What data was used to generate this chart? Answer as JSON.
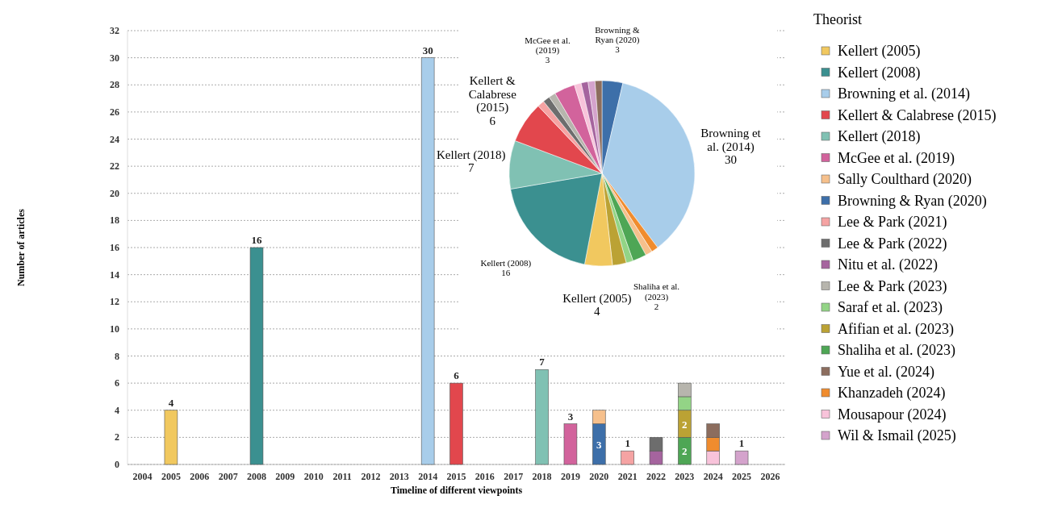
{
  "chart_data": [
    {
      "type": "bar",
      "stacked": true,
      "xlabel": "Timeline of different viewpoints",
      "ylabel": "Number of articles",
      "legend_title": "Theorist",
      "legend": "right",
      "grid": "y",
      "ylim": [
        0,
        32
      ],
      "yticks": [
        0,
        2,
        4,
        6,
        8,
        10,
        12,
        14,
        16,
        18,
        20,
        22,
        24,
        26,
        28,
        30,
        32
      ],
      "categories": [
        "2004",
        "2005",
        "2006",
        "2007",
        "2008",
        "2009",
        "2010",
        "2011",
        "2012",
        "2013",
        "2014",
        "2015",
        "2016",
        "2017",
        "2018",
        "2019",
        "2020",
        "2021",
        "2022",
        "2023",
        "2024",
        "2025",
        "2026"
      ],
      "series": [
        {
          "name": "Wil & Ismail (2025)",
          "color": "#d4a3cc",
          "values": [
            null,
            null,
            null,
            null,
            null,
            null,
            null,
            null,
            null,
            null,
            null,
            null,
            null,
            null,
            null,
            null,
            null,
            null,
            null,
            null,
            null,
            1,
            null
          ],
          "value_labels": [
            null,
            null,
            null,
            null,
            null,
            null,
            null,
            null,
            null,
            null,
            null,
            null,
            null,
            null,
            null,
            null,
            null,
            null,
            null,
            null,
            null,
            "1",
            null
          ]
        },
        {
          "name": "Mousapour (2024)",
          "color": "#f8c3da",
          "values": [
            null,
            null,
            null,
            null,
            null,
            null,
            null,
            null,
            null,
            null,
            null,
            null,
            null,
            null,
            null,
            null,
            null,
            null,
            null,
            null,
            1,
            null,
            null
          ]
        },
        {
          "name": "Khanzadeh (2024)",
          "color": "#f08c2e",
          "values": [
            null,
            null,
            null,
            null,
            null,
            null,
            null,
            null,
            null,
            null,
            null,
            null,
            null,
            null,
            null,
            null,
            null,
            null,
            null,
            null,
            1,
            null,
            null
          ]
        },
        {
          "name": "Yue et al. (2024)",
          "color": "#8c6d5e",
          "values": [
            null,
            null,
            null,
            null,
            null,
            null,
            null,
            null,
            null,
            null,
            null,
            null,
            null,
            null,
            null,
            null,
            null,
            null,
            null,
            null,
            1,
            null,
            null
          ]
        },
        {
          "name": "Shaliha et al. (2023)",
          "color": "#4ea655",
          "values": [
            null,
            null,
            null,
            null,
            null,
            null,
            null,
            null,
            null,
            null,
            null,
            null,
            null,
            null,
            null,
            null,
            null,
            null,
            null,
            2,
            null,
            null,
            null
          ],
          "value_labels": [
            null,
            null,
            null,
            null,
            null,
            null,
            null,
            null,
            null,
            null,
            null,
            null,
            null,
            null,
            null,
            null,
            null,
            null,
            null,
            "2",
            null,
            null,
            null
          ]
        },
        {
          "name": "Afifian et al. (2023)",
          "color": "#bba234",
          "values": [
            null,
            null,
            null,
            null,
            null,
            null,
            null,
            null,
            null,
            null,
            null,
            null,
            null,
            null,
            null,
            null,
            null,
            null,
            null,
            2,
            null,
            null,
            null
          ],
          "value_labels": [
            null,
            null,
            null,
            null,
            null,
            null,
            null,
            null,
            null,
            null,
            null,
            null,
            null,
            null,
            null,
            null,
            null,
            null,
            null,
            "2",
            null,
            null,
            null
          ]
        },
        {
          "name": "Saraf et al. (2023)",
          "color": "#93d486",
          "values": [
            null,
            null,
            null,
            null,
            null,
            null,
            null,
            null,
            null,
            null,
            null,
            null,
            null,
            null,
            null,
            null,
            null,
            null,
            null,
            1,
            null,
            null,
            null
          ]
        },
        {
          "name": "Lee & Park (2023)",
          "color": "#b7b5ad",
          "values": [
            null,
            null,
            null,
            null,
            null,
            null,
            null,
            null,
            null,
            null,
            null,
            null,
            null,
            null,
            null,
            null,
            null,
            null,
            null,
            1,
            null,
            null,
            null
          ]
        },
        {
          "name": "Nitu et al. (2022)",
          "color": "#a5649e",
          "values": [
            null,
            null,
            null,
            null,
            null,
            null,
            null,
            null,
            null,
            null,
            null,
            null,
            null,
            null,
            null,
            null,
            null,
            null,
            1,
            null,
            null,
            null,
            null
          ]
        },
        {
          "name": "Lee & Park (2022)",
          "color": "#6d6d6d",
          "values": [
            null,
            null,
            null,
            null,
            null,
            null,
            null,
            null,
            null,
            null,
            null,
            null,
            null,
            null,
            null,
            null,
            null,
            null,
            1,
            null,
            null,
            null,
            null
          ]
        },
        {
          "name": "Lee & Park (2021)",
          "color": "#f5a3a3",
          "values": [
            null,
            null,
            null,
            null,
            null,
            null,
            null,
            null,
            null,
            null,
            null,
            null,
            null,
            null,
            null,
            null,
            null,
            1,
            null,
            null,
            null,
            null,
            null
          ],
          "value_labels": [
            null,
            null,
            null,
            null,
            null,
            null,
            null,
            null,
            null,
            null,
            null,
            null,
            null,
            null,
            null,
            null,
            null,
            "1",
            null,
            null,
            null,
            null,
            null
          ]
        },
        {
          "name": "Browning & Ryan (2020)",
          "color": "#3d6fa9",
          "values": [
            null,
            null,
            null,
            null,
            null,
            null,
            null,
            null,
            null,
            null,
            null,
            null,
            null,
            null,
            null,
            null,
            3,
            null,
            null,
            null,
            null,
            null,
            null
          ],
          "value_labels": [
            null,
            null,
            null,
            null,
            null,
            null,
            null,
            null,
            null,
            null,
            null,
            null,
            null,
            null,
            null,
            null,
            "3",
            null,
            null,
            null,
            null,
            null,
            null
          ]
        },
        {
          "name": "Sally Coulthard (2020)",
          "color": "#f6c08c",
          "values": [
            null,
            null,
            null,
            null,
            null,
            null,
            null,
            null,
            null,
            null,
            null,
            null,
            null,
            null,
            null,
            null,
            1,
            null,
            null,
            null,
            null,
            null,
            null
          ]
        },
        {
          "name": "McGee et al. (2019)",
          "color": "#d2639c",
          "values": [
            null,
            null,
            null,
            null,
            null,
            null,
            null,
            null,
            null,
            null,
            null,
            null,
            null,
            null,
            null,
            3,
            null,
            null,
            null,
            null,
            null,
            null,
            null
          ],
          "value_labels": [
            null,
            null,
            null,
            null,
            null,
            null,
            null,
            null,
            null,
            null,
            null,
            null,
            null,
            null,
            null,
            "3",
            null,
            null,
            null,
            null,
            null,
            null,
            null
          ]
        },
        {
          "name": "Kellert (2018)",
          "color": "#80c1b3",
          "values": [
            null,
            null,
            null,
            null,
            null,
            null,
            null,
            null,
            null,
            null,
            null,
            null,
            null,
            null,
            7,
            null,
            null,
            null,
            null,
            null,
            null,
            null,
            null
          ],
          "value_labels": [
            null,
            null,
            null,
            null,
            null,
            null,
            null,
            null,
            null,
            null,
            null,
            null,
            null,
            null,
            "7",
            null,
            null,
            null,
            null,
            null,
            null,
            null,
            null
          ]
        },
        {
          "name": "Kellert & Calabrese (2015)",
          "color": "#e2474d",
          "values": [
            null,
            null,
            null,
            null,
            null,
            null,
            null,
            null,
            null,
            null,
            null,
            6,
            null,
            null,
            null,
            null,
            null,
            null,
            null,
            null,
            null,
            null,
            null
          ],
          "value_labels": [
            null,
            null,
            null,
            null,
            null,
            null,
            null,
            null,
            null,
            null,
            null,
            "6",
            null,
            null,
            null,
            null,
            null,
            null,
            null,
            null,
            null,
            null,
            null
          ]
        },
        {
          "name": "Browning et al. (2014)",
          "color": "#a8cdea",
          "values": [
            null,
            null,
            null,
            null,
            null,
            null,
            null,
            null,
            null,
            null,
            30,
            null,
            null,
            null,
            null,
            null,
            null,
            null,
            null,
            null,
            null,
            null,
            null
          ],
          "value_labels": [
            null,
            null,
            null,
            null,
            null,
            null,
            null,
            null,
            null,
            null,
            "30",
            null,
            null,
            null,
            null,
            null,
            null,
            null,
            null,
            null,
            null,
            null,
            null
          ]
        },
        {
          "name": "Kellert (2008)",
          "color": "#3b9090",
          "values": [
            null,
            null,
            null,
            null,
            16,
            null,
            null,
            null,
            null,
            null,
            null,
            null,
            null,
            null,
            null,
            null,
            null,
            null,
            null,
            null,
            null,
            null,
            null
          ],
          "value_labels": [
            null,
            null,
            null,
            null,
            "16",
            null,
            null,
            null,
            null,
            null,
            null,
            null,
            null,
            null,
            null,
            null,
            null,
            null,
            null,
            null,
            null,
            null,
            null
          ]
        },
        {
          "name": "Kellert (2005)",
          "color": "#f1c85f",
          "values": [
            null,
            4,
            null,
            null,
            null,
            null,
            null,
            null,
            null,
            null,
            null,
            null,
            null,
            null,
            null,
            null,
            null,
            null,
            null,
            null,
            null,
            null,
            null
          ],
          "value_labels": [
            null,
            "4",
            null,
            null,
            null,
            null,
            null,
            null,
            null,
            null,
            null,
            null,
            null,
            null,
            null,
            null,
            null,
            null,
            null,
            null,
            null,
            null,
            null
          ]
        }
      ]
    },
    {
      "type": "pie",
      "categories": [
        "Browning & Ryan (2020)",
        "Browning et al. (2014)",
        null,
        null,
        "Shaliha et al. (2023)",
        null,
        null,
        "Kellert (2005)",
        "Kellert (2008)",
        "Kellert (2018)",
        "Kellert & Calabrese (2015)",
        null,
        null,
        null,
        "McGee et al. (2019)",
        null,
        null,
        null,
        null
      ],
      "values": [
        3,
        30,
        1,
        1,
        2,
        1,
        2,
        4,
        16,
        7,
        6,
        1,
        1,
        1,
        3,
        1,
        1,
        1,
        1
      ],
      "colors": [
        "#3d6fa9",
        "#a8cdea",
        "#f08c2e",
        "#f6c08c",
        "#4ea655",
        "#93d486",
        "#bba234",
        "#f1c85f",
        "#3b9090",
        "#80c1b3",
        "#e2474d",
        "#f5a3a3",
        "#6d6d6d",
        "#b7b5ad",
        "#d2639c",
        "#f8c3da",
        "#a5649e",
        "#d4a3cc",
        "#8c6d5e"
      ],
      "value_labels": [
        "3",
        "30",
        null,
        null,
        "2",
        null,
        null,
        "4",
        "16",
        "7",
        "6",
        null,
        null,
        null,
        "3",
        null,
        null,
        null,
        null
      ]
    }
  ]
}
